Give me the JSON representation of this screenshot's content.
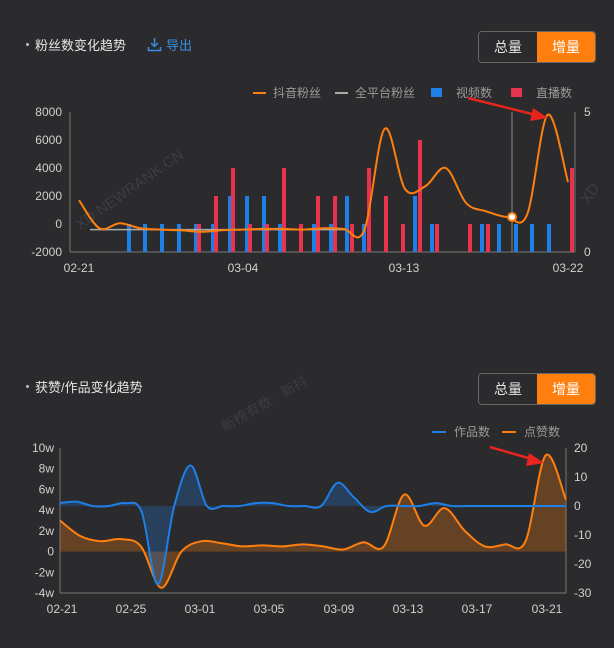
{
  "top_panel": {
    "title": "粉丝数变化趋势",
    "export_label": "导出",
    "toggle": {
      "total": "总量",
      "increment": "增量"
    }
  },
  "bottom_panel": {
    "title": "获赞/作品变化趋势",
    "toggle": {
      "total": "总量",
      "increment": "增量"
    }
  },
  "watermark": "XD.NEWRANK.CN",
  "watermark2": "新榜有数 · 新抖",
  "colors": {
    "orange": "#ff7f0e",
    "blue": "#1e7fe6",
    "red": "#e8334e",
    "gray": "#aaaaaa"
  },
  "chart_data": [
    {
      "type": "bar",
      "legend": [
        "抖音粉丝",
        "全平台粉丝",
        "视频数",
        "直播数"
      ],
      "x_ticks": [
        "02-21",
        "03-04",
        "03-13",
        "03-22"
      ],
      "y_left": {
        "ticks": [
          "8000",
          "6000",
          "4000",
          "2000",
          "0",
          "-2000"
        ],
        "ylim": [
          -2000,
          8000
        ]
      },
      "y_right": {
        "ticks": [
          "5",
          "0"
        ],
        "ylim": [
          0,
          5
        ]
      },
      "douyin_fans": [
        1700,
        -300,
        50,
        -300,
        -400,
        -450,
        -550,
        -450,
        -400,
        -350,
        -350,
        -400,
        -300,
        -350,
        -450,
        6800,
        2500,
        2700,
        4000,
        1500,
        900,
        500,
        700,
        7800,
        3000
      ],
      "all_platform_fans": [
        -400,
        -400,
        -400,
        -400,
        -400,
        -400,
        -400,
        -400,
        -400,
        -400,
        -400,
        -400,
        -400,
        -400,
        -400,
        -400
      ],
      "video_counts": [
        1,
        1,
        1,
        1,
        1,
        1,
        2,
        2,
        2,
        1,
        1,
        1,
        2,
        1,
        2,
        1,
        1,
        1,
        1,
        1,
        1
      ],
      "live_counts": [
        1,
        2,
        3,
        1,
        1,
        3,
        1,
        2,
        2,
        1,
        3,
        2,
        1,
        4,
        1,
        1,
        1,
        3
      ]
    },
    {
      "type": "area",
      "legend": [
        "作品数",
        "点赞数"
      ],
      "x_ticks": [
        "02-21",
        "02-25",
        "03-01",
        "03-05",
        "03-09",
        "03-13",
        "03-17",
        "03-21"
      ],
      "y_left": {
        "ticks": [
          "10w",
          "8w",
          "6w",
          "4w",
          "2w",
          "0",
          "-2w",
          "-4w"
        ],
        "ylim": [
          -40000,
          100000
        ]
      },
      "y_right": {
        "ticks": [
          "20",
          "10",
          "0",
          "-10",
          "-20",
          "-30"
        ],
        "ylim": [
          -30,
          20
        ]
      },
      "works": [
        1,
        1.5,
        0,
        0,
        1,
        -2,
        -27,
        0,
        14,
        0,
        0,
        0,
        1,
        1,
        0,
        0,
        0,
        8,
        3,
        -2,
        0,
        0,
        0,
        1,
        0,
        0,
        0,
        0,
        0,
        0,
        0,
        0
      ],
      "likes": [
        30000,
        15000,
        10000,
        12000,
        5000,
        -35000,
        0,
        10000,
        8000,
        5000,
        6000,
        5000,
        7000,
        5000,
        2000,
        9000,
        5000,
        55000,
        25000,
        42000,
        20000,
        5000,
        7000,
        10000,
        93000,
        50000
      ]
    }
  ]
}
